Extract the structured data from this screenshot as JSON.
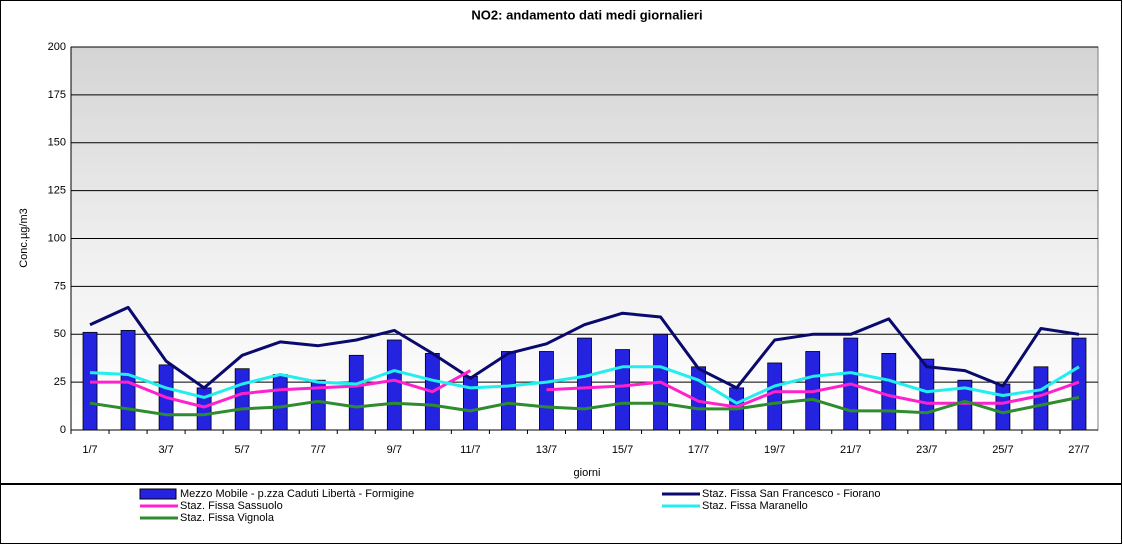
{
  "chart_data": {
    "type": "bar_line",
    "title": "NO2: andamento dati medi giornalieri",
    "y_label": "Conc.µg/m3",
    "x_label": "giorni",
    "categories": [
      "1/7",
      null,
      "3/7",
      null,
      "5/7",
      null,
      "7/7",
      null,
      "9/7",
      null,
      "11/7",
      null,
      "13/7",
      null,
      "15/7",
      null,
      "17/7",
      null,
      "19/7",
      null,
      "21/7",
      null,
      "23/7",
      null,
      "25/7",
      null,
      "27/7"
    ],
    "ylim": [
      0,
      200
    ],
    "yticks": [
      0,
      25,
      50,
      75,
      100,
      125,
      150,
      175,
      200
    ],
    "grid": true,
    "series": [
      {
        "name": "Mezzo Mobile - p.zza Caduti Libertà - Formigine",
        "kind": "bar",
        "color": "#2424e0",
        "values": [
          51,
          52,
          34,
          22,
          32,
          29,
          26,
          39,
          47,
          40,
          28,
          41,
          41,
          48,
          42,
          50,
          33,
          22,
          35,
          41,
          48,
          40,
          37,
          26,
          24,
          33,
          48
        ]
      },
      {
        "name": "Staz. Fissa San Francesco - Fiorano",
        "kind": "line",
        "color": "#0a0a6e",
        "values": [
          55,
          64,
          36,
          22,
          39,
          46,
          44,
          47,
          52,
          40,
          27,
          40,
          45,
          55,
          61,
          59,
          32,
          22,
          47,
          50,
          50,
          58,
          33,
          31,
          23,
          53,
          50
        ]
      },
      {
        "name": "Staz. Fissa Sassuolo",
        "kind": "line",
        "color": "#ff22cc",
        "values": [
          25,
          25,
          17,
          12,
          19,
          21,
          22,
          23,
          26,
          20,
          31,
          null,
          21,
          22,
          23,
          25,
          15,
          12,
          20,
          20,
          24,
          18,
          14,
          14,
          14,
          18,
          25
        ]
      },
      {
        "name": "Staz. Fissa Maranello",
        "kind": "line",
        "color": "#22eeee",
        "values": [
          30,
          29,
          22,
          17,
          24,
          29,
          25,
          24,
          31,
          26,
          22,
          23,
          25,
          28,
          33,
          33,
          26,
          14,
          23,
          28,
          30,
          26,
          20,
          22,
          18,
          21,
          33
        ]
      },
      {
        "name": "Staz. Fissa Vignola",
        "kind": "line",
        "color": "#2e8b2e",
        "values": [
          14,
          11,
          8,
          8,
          11,
          12,
          15,
          12,
          14,
          13,
          10,
          14,
          12,
          11,
          14,
          14,
          11,
          11,
          14,
          16,
          10,
          10,
          9,
          15,
          9,
          13,
          17
        ]
      }
    ]
  }
}
